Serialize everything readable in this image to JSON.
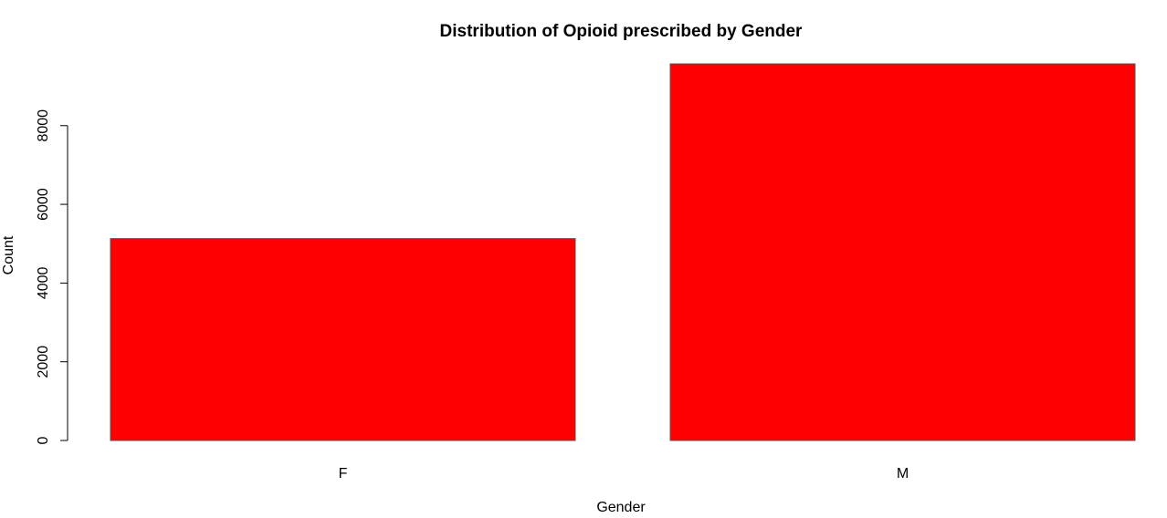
{
  "chart_data": {
    "type": "bar",
    "title": "Distribution of Opioid prescribed by Gender",
    "xlabel": "Gender",
    "ylabel": "Count",
    "categories": [
      "F",
      "M"
    ],
    "values": [
      5130,
      9570
    ],
    "ylim": [
      0,
      9570
    ],
    "yticks": [
      0,
      2000,
      4000,
      6000,
      8000
    ],
    "ytick_labels": [
      "0",
      "2000",
      "4000",
      "6000",
      "8000"
    ],
    "grid": false,
    "legend": "none",
    "bar_color": "#ff0000",
    "bar_border_color": "#555555"
  }
}
